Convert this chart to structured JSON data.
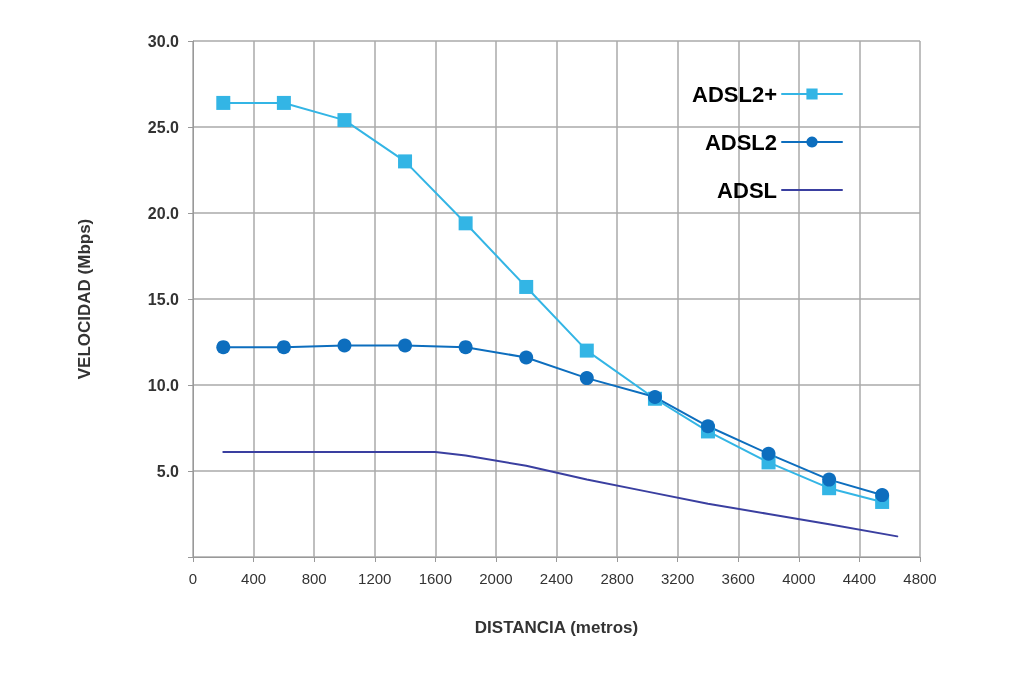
{
  "chart_data": {
    "type": "line",
    "xlabel": "DISTANCIA (metros)",
    "ylabel": "VELOCIDAD (Mbps)",
    "xlim": [
      0,
      4800
    ],
    "xticks": [
      0,
      400,
      800,
      1200,
      1600,
      2000,
      2400,
      2800,
      3200,
      3600,
      4000,
      4400,
      4800
    ],
    "ylim": [
      0,
      30
    ],
    "yticks": [
      {
        "value": 0,
        "label": null
      },
      {
        "value": 5,
        "label": "5.0"
      },
      {
        "value": 10,
        "label": "10.0"
      },
      {
        "value": 15,
        "label": "15.0"
      },
      {
        "value": 20,
        "label": "20.0"
      },
      {
        "value": 25,
        "label": "25.0"
      },
      {
        "value": 30,
        "label": "30.0"
      }
    ],
    "grid": true,
    "legend": "top right",
    "series": [
      {
        "name": "ADSL2+",
        "color": "#33b5e5",
        "marker": "square",
        "x": [
          200,
          600,
          1000,
          1400,
          1800,
          2200,
          2600,
          3050,
          3400,
          3800,
          4200,
          4550
        ],
        "values": [
          26.4,
          26.4,
          25.4,
          23.0,
          19.4,
          15.7,
          12.0,
          9.2,
          7.3,
          5.5,
          4.0,
          3.2
        ]
      },
      {
        "name": "ADSL2",
        "color": "#0d6ebe",
        "marker": "circle",
        "x": [
          200,
          600,
          1000,
          1400,
          1800,
          2200,
          2600,
          3050,
          3400,
          3800,
          4200,
          4550
        ],
        "values": [
          12.2,
          12.2,
          12.3,
          12.3,
          12.2,
          11.6,
          10.4,
          9.3,
          7.6,
          6.0,
          4.5,
          3.6
        ]
      },
      {
        "name": "ADSL",
        "color": "#3a3fa0",
        "marker": "none",
        "x": [
          200,
          1600,
          1800,
          2200,
          2600,
          3000,
          3400,
          3800,
          4200,
          4650
        ],
        "values": [
          6.1,
          6.1,
          5.9,
          5.3,
          4.5,
          3.8,
          3.1,
          2.5,
          1.9,
          1.2
        ]
      }
    ]
  }
}
